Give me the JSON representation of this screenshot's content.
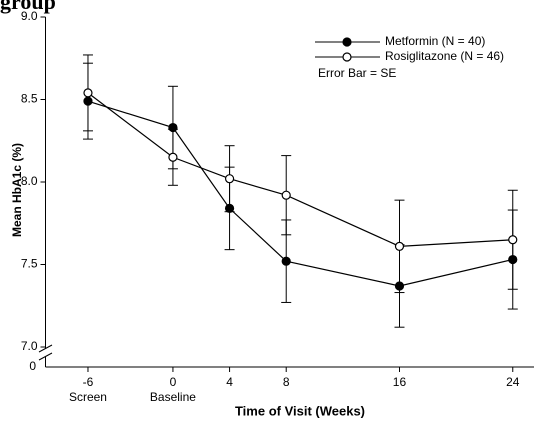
{
  "chart_data": {
    "type": "line_errorbar",
    "title": "group",
    "ylabel": "Mean HbA1c (%)",
    "xlabel": "Time of Visit (Weeks)",
    "x": [
      -6,
      0,
      4,
      8,
      16,
      24
    ],
    "x_sublabels": [
      "Screen",
      "Baseline",
      null,
      null,
      null,
      null
    ],
    "xlim": [
      -9,
      25.5
    ],
    "xticks": [
      -6,
      0,
      4,
      8,
      16,
      24
    ],
    "ylim": [
      7,
      9
    ],
    "yticks": [
      {
        "value": 7,
        "label": "7.0"
      },
      {
        "value": 7.5,
        "label": "7.5"
      },
      {
        "value": 8,
        "label": "8.0"
      },
      {
        "value": 8.5,
        "label": "8.5"
      },
      {
        "value": 9,
        "label": "9.0"
      }
    ],
    "y_origin_label": "0",
    "legend_note": "Error Bar = SE",
    "legend_position": "upper right",
    "series": [
      {
        "name": "Metformin (N = 40)",
        "color": "#000000",
        "marker_fill": "#000000",
        "values": [
          8.49,
          8.33,
          7.84,
          7.52,
          7.37,
          7.53
        ],
        "errors": [
          0.23,
          0.25,
          0.25,
          0.25,
          0.25,
          0.3
        ]
      },
      {
        "name": "Rosiglitazone (N = 46)",
        "color": "#000000",
        "marker_fill": "#ffffff",
        "values": [
          8.54,
          8.15,
          8.02,
          7.92,
          7.61,
          7.65
        ],
        "errors": [
          0.23,
          0.17,
          0.2,
          0.24,
          0.28,
          0.3
        ]
      }
    ]
  }
}
